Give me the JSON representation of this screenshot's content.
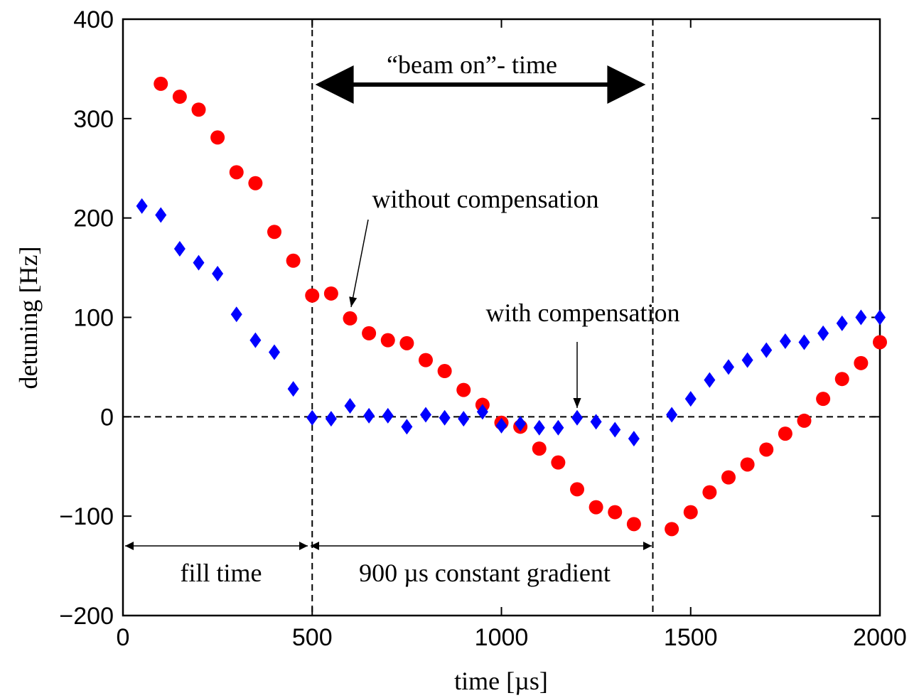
{
  "chart_data": {
    "type": "scatter",
    "xlabel": "time [µs]",
    "ylabel": "detuning [Hz]",
    "xlim": [
      0,
      2000
    ],
    "ylim": [
      -200,
      400
    ],
    "xticks": [
      0,
      500,
      1000,
      1500,
      2000
    ],
    "yticks": [
      -200,
      -100,
      0,
      100,
      200,
      300,
      400
    ],
    "xtick_labels": [
      "0",
      "500",
      "1000",
      "1500",
      "2000"
    ],
    "ytick_labels": [
      "−200",
      "−100",
      "0",
      "100",
      "200",
      "300",
      "400"
    ],
    "grid": false,
    "reference_lines": {
      "horizontal_y": 0,
      "vertical_x": [
        500,
        1400
      ],
      "style": "dashed"
    },
    "series": [
      {
        "marker": "circle",
        "color": "#ff0000",
        "x": [
          100,
          150,
          200,
          250,
          300,
          350,
          400,
          450,
          500,
          550,
          600,
          650,
          700,
          750,
          800,
          850,
          900,
          950,
          1000,
          1050,
          1100,
          1150,
          1200,
          1250,
          1300,
          1350,
          1450,
          1500,
          1550,
          1600,
          1650,
          1700,
          1750,
          1800,
          1850,
          1900,
          1950,
          2000
        ],
        "y": [
          335,
          322,
          309,
          281,
          246,
          235,
          186,
          157,
          122,
          124,
          99,
          84,
          77,
          74,
          57,
          46,
          27,
          12,
          -6,
          -10,
          -32,
          -46,
          -73,
          -91,
          -96,
          -108,
          -113,
          -96,
          -76,
          -61,
          -48,
          -33,
          -17,
          -4,
          18,
          38,
          54,
          75
        ]
      },
      {
        "marker": "diamond",
        "color": "#0000ff",
        "x": [
          50,
          100,
          150,
          200,
          250,
          300,
          350,
          400,
          450,
          500,
          550,
          600,
          650,
          700,
          750,
          800,
          850,
          900,
          950,
          1000,
          1050,
          1100,
          1150,
          1200,
          1250,
          1300,
          1350,
          1450,
          1500,
          1550,
          1600,
          1650,
          1700,
          1750,
          1800,
          1850,
          1900,
          1950,
          2000
        ],
        "y": [
          212,
          203,
          169,
          155,
          144,
          103,
          77,
          65,
          28,
          -1,
          -2,
          11,
          1,
          1,
          -10,
          2,
          -1,
          -2,
          5,
          -9,
          -7,
          -11,
          -11,
          -1,
          -5,
          -13,
          -22,
          2,
          18,
          37,
          50,
          57,
          67,
          76,
          75,
          84,
          94,
          100,
          100
        ]
      }
    ],
    "annotations": {
      "beam_on": "“beam on”- time",
      "without": "without compensation",
      "with": "with compensation",
      "fill_time": "fill time",
      "constant_gradient": "900 µs constant gradient"
    }
  }
}
